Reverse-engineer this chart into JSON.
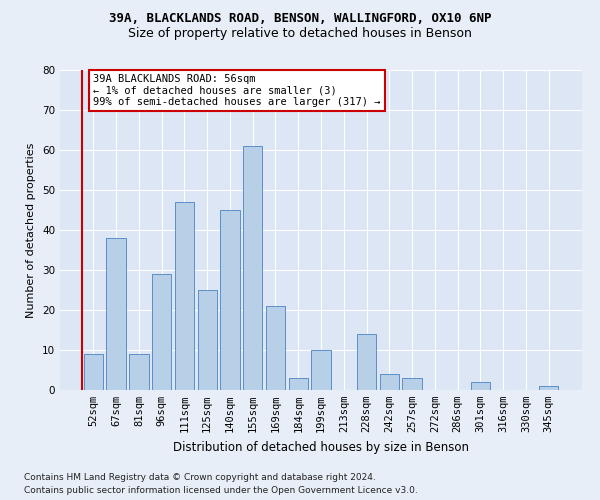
{
  "title1": "39A, BLACKLANDS ROAD, BENSON, WALLINGFORD, OX10 6NP",
  "title2": "Size of property relative to detached houses in Benson",
  "xlabel": "Distribution of detached houses by size in Benson",
  "ylabel": "Number of detached properties",
  "categories": [
    "52sqm",
    "67sqm",
    "81sqm",
    "96sqm",
    "111sqm",
    "125sqm",
    "140sqm",
    "155sqm",
    "169sqm",
    "184sqm",
    "199sqm",
    "213sqm",
    "228sqm",
    "242sqm",
    "257sqm",
    "272sqm",
    "286sqm",
    "301sqm",
    "316sqm",
    "330sqm",
    "345sqm"
  ],
  "values": [
    9,
    38,
    9,
    29,
    47,
    25,
    45,
    61,
    21,
    3,
    10,
    0,
    14,
    4,
    3,
    0,
    0,
    2,
    0,
    0,
    1
  ],
  "bar_color": "#b8cfe8",
  "bar_edge_color": "#5b8fc9",
  "annotation_line1": "39A BLACKLANDS ROAD: 56sqm",
  "annotation_line2": "← 1% of detached houses are smaller (3)",
  "annotation_line3": "99% of semi-detached houses are larger (317) →",
  "annotation_box_color": "#ffffff",
  "annotation_border_color": "#cc0000",
  "ylim": [
    0,
    80
  ],
  "yticks": [
    0,
    10,
    20,
    30,
    40,
    50,
    60,
    70,
    80
  ],
  "footnote1": "Contains HM Land Registry data © Crown copyright and database right 2024.",
  "footnote2": "Contains public sector information licensed under the Open Government Licence v3.0.",
  "bg_color": "#e8eef7",
  "plot_bg_color": "#dce6f5",
  "grid_color": "#ffffff",
  "title1_fontsize": 9,
  "title2_fontsize": 9,
  "xlabel_fontsize": 8.5,
  "ylabel_fontsize": 8,
  "tick_fontsize": 7.5,
  "annot_fontsize": 7.5,
  "footnote_fontsize": 6.5
}
